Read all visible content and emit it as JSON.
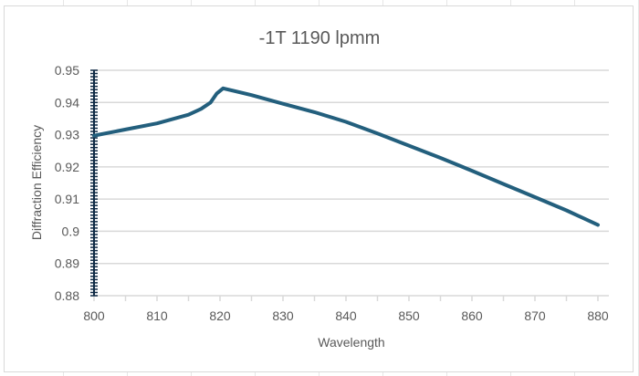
{
  "chart_data": {
    "type": "line",
    "title": "-1T 1190 lpmm",
    "xlabel": "Wavelength",
    "ylabel": "Diffraction Efficiency",
    "xlim": [
      800,
      880
    ],
    "ylim": [
      0.88,
      0.95
    ],
    "x_ticks": [
      800,
      810,
      820,
      830,
      840,
      850,
      860,
      870,
      880
    ],
    "y_ticks": [
      "0.88",
      "0.89",
      "0.9",
      "0.91",
      "0.92",
      "0.93",
      "0.94",
      "0.95"
    ],
    "grid": "horizontal",
    "legend": "none",
    "line_color": "#235f7d",
    "series": [
      {
        "x": [
          800,
          805,
          810,
          815,
          817,
          818.5,
          819.5,
          820.5,
          825,
          830,
          835,
          840,
          845,
          850,
          855,
          860,
          865,
          870,
          875,
          880
        ],
        "y": [
          0.9297,
          0.9316,
          0.9335,
          0.9362,
          0.938,
          0.94,
          0.9428,
          0.9444,
          0.9423,
          0.9396,
          0.937,
          0.934,
          0.9304,
          0.9266,
          0.9228,
          0.9188,
          0.9147,
          0.9106,
          0.9065,
          0.902
        ]
      }
    ]
  }
}
